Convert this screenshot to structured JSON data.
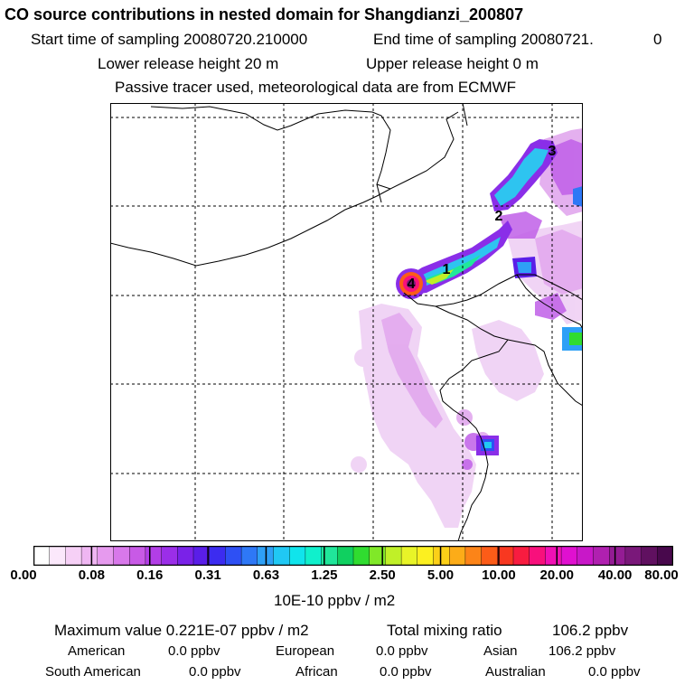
{
  "header": {
    "title": "CO  source contributions in nested domain for Shangdianzi_200807",
    "start_label": "Start time of sampling 20080720.210000",
    "end_label": "End time of sampling 20080721.",
    "end_suffix": "0",
    "lower_release": "Lower release height   20 m",
    "upper_release": "Upper release height    0 m",
    "tracer_note": "Passive tracer used, meteorological data are from ECMWF"
  },
  "map": {
    "markers": [
      {
        "label": "1"
      },
      {
        "label": "2"
      },
      {
        "label": "3"
      },
      {
        "label": "4"
      }
    ]
  },
  "colorbar": {
    "tick_labels": [
      "0.00",
      "0.08",
      "0.16",
      "0.31",
      "0.63",
      "1.25",
      "2.50",
      "5.00",
      "10.00",
      "20.00",
      "40.00",
      "80.00"
    ],
    "units": "10E-10 ppbv / m2",
    "colors": [
      "#ffffff",
      "#fbe8fb",
      "#f6d0f6",
      "#efb6f2",
      "#e69aee",
      "#d878ea",
      "#c85ae6",
      "#b23ee6",
      "#9b2ee8",
      "#7a22e8",
      "#5a1ee8",
      "#3c2cf0",
      "#2e50f4",
      "#2e78f6",
      "#2ea0f6",
      "#20c8f4",
      "#10e4ec",
      "#10f0cc",
      "#20e69a",
      "#10d060",
      "#30dc30",
      "#80e828",
      "#c0f028",
      "#e8f428",
      "#fcf020",
      "#fcd018",
      "#fcac18",
      "#fc8418",
      "#fc5c18",
      "#f83820",
      "#f81c40",
      "#f8107c",
      "#f010b4",
      "#e010d0",
      "#c818c8",
      "#b020b0",
      "#941c94",
      "#7a187a",
      "#601060",
      "#48084c"
    ]
  },
  "summary": {
    "max_label": "Maximum value  0.221E-07 ppbv / m2",
    "total_label": "Total mixing ratio",
    "total_value": "106.2 ppbv",
    "american_label": "American",
    "american_value": "0.0 ppbv",
    "european_label": "European",
    "european_value": "0.0 ppbv",
    "asian_label": "Asian",
    "asian_value": "106.2 ppbv",
    "south_american_label": "South American",
    "south_american_value": "0.0 ppbv",
    "african_label": "African",
    "african_value": "0.0 ppbv",
    "australian_label": "Australian",
    "australian_value": "0.0 ppbv"
  }
}
